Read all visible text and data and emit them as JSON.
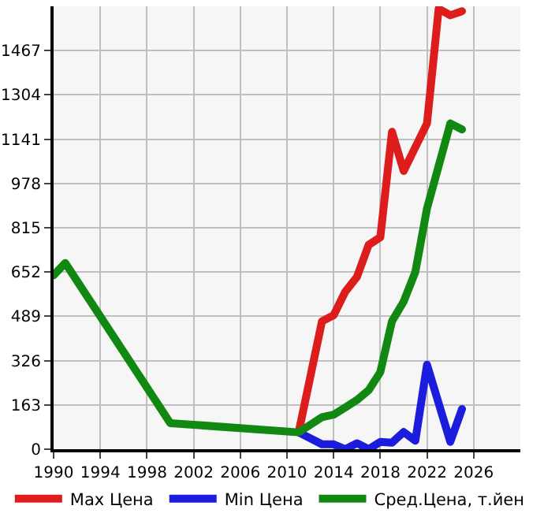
{
  "chart_data": {
    "type": "line",
    "xlim": [
      1990,
      2030
    ],
    "xticks": [
      1990,
      1994,
      1998,
      2002,
      2006,
      2010,
      2014,
      2018,
      2022,
      2026
    ],
    "ylim": [
      0,
      1630
    ],
    "yticks": [
      0,
      163,
      326,
      489,
      652,
      815,
      978,
      1141,
      1304,
      1467
    ],
    "grid": true,
    "legend": "bottom",
    "marker": "none",
    "line_style": "solid",
    "series": [
      {
        "name": "Max Цена",
        "color": "#dd1c1c",
        "x": [
          2011,
          2013,
          2014,
          2015,
          2016,
          2017,
          2018,
          2019,
          2020,
          2022,
          2023,
          2024,
          2025
        ],
        "values": [
          62,
          471,
          493,
          580,
          634,
          752,
          780,
          1168,
          1024,
          1199,
          1621,
          1597,
          1612
        ]
      },
      {
        "name": "Min Цена",
        "color": "#1c1cdd",
        "x": [
          2011,
          2013,
          2014,
          2015,
          2016,
          2017,
          2018,
          2019,
          2020,
          2021,
          2022,
          2024,
          2025
        ],
        "values": [
          62,
          18,
          18,
          0,
          22,
          0,
          27,
          24,
          63,
          31,
          311,
          27,
          148
        ]
      },
      {
        "name": "Сред.Цена, т.йен",
        "color": "#118811",
        "x": [
          1990,
          1991,
          2000,
          2011,
          2013,
          2014,
          2015,
          2016,
          2017,
          2018,
          2019,
          2020,
          2021,
          2022,
          2024,
          2025
        ],
        "values": [
          640,
          685,
          96,
          62,
          118,
          127,
          154,
          181,
          217,
          284,
          471,
          543,
          652,
          886,
          1199,
          1177
        ]
      }
    ]
  }
}
